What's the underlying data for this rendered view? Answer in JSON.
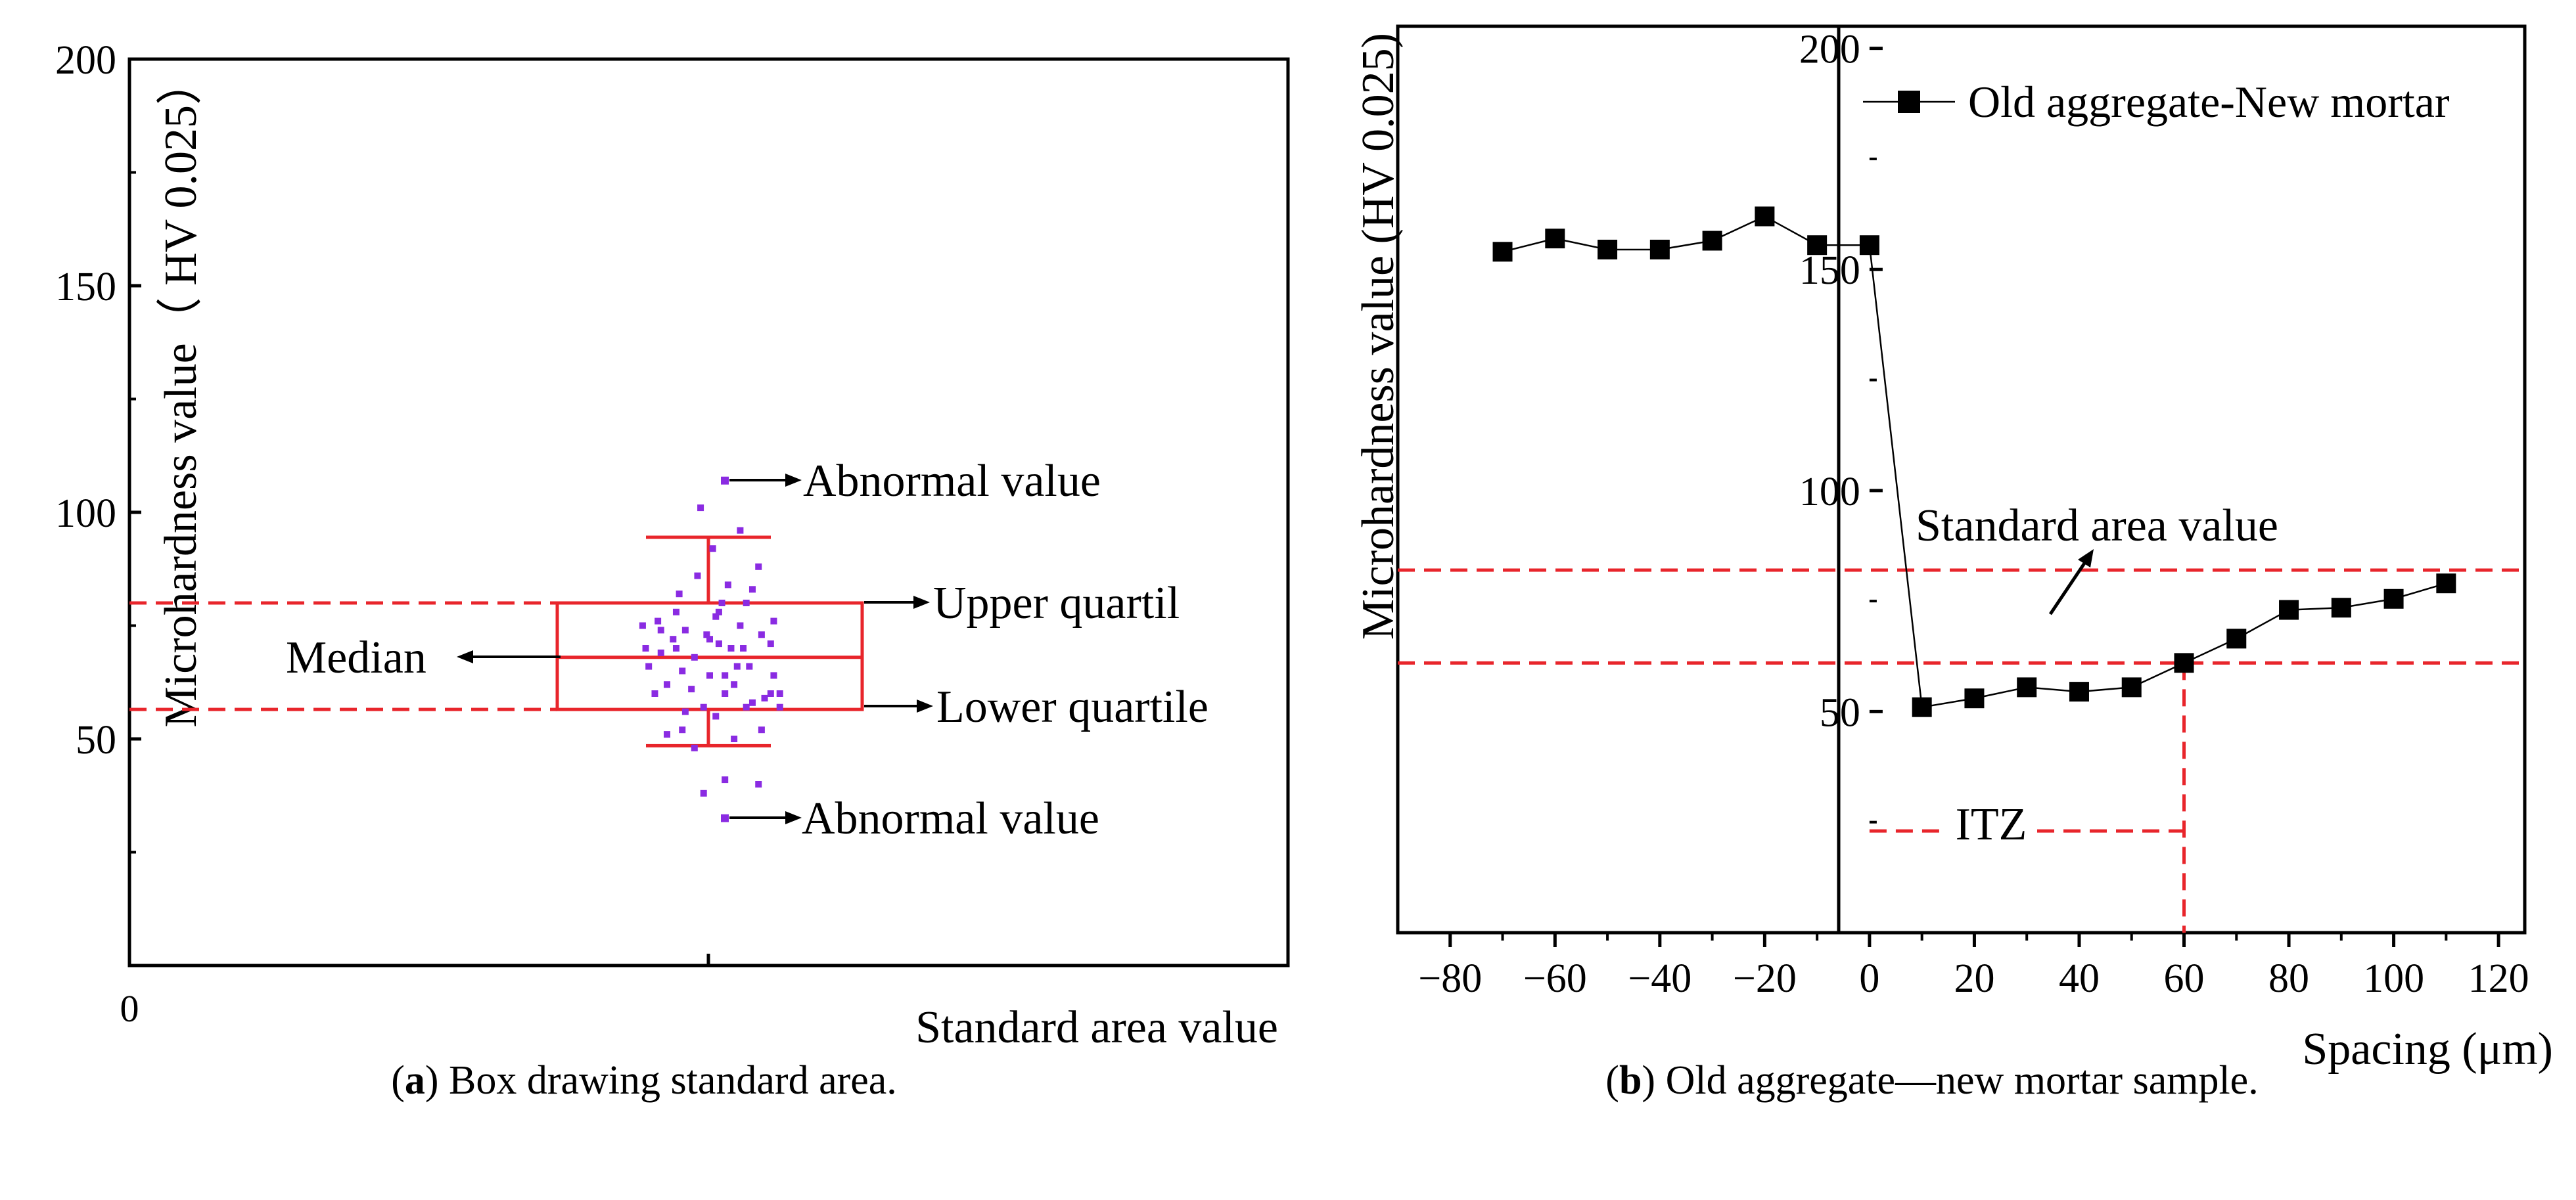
{
  "colors": {
    "axis": "#000000",
    "box": "#e8252b",
    "dashed": "#e8252b",
    "points_a": "#8a2be2",
    "series_b": "#000000"
  },
  "captions": {
    "a_letter": "a",
    "a_text": " Box drawing standard area.",
    "b_letter": "b",
    "b_text": " Old aggregate—new mortar sample."
  },
  "chart_data": [
    {
      "type": "box",
      "title": "",
      "xlabel": "Standard area value",
      "ylabel": "Microhardness value（ HV 0.025）",
      "ylim": [
        0,
        200
      ],
      "y_ticks": [
        50,
        100,
        150,
        200
      ],
      "y_tick_labels": [
        "50",
        "100",
        "150",
        "200"
      ],
      "origin_label": "0",
      "box": {
        "median": 68,
        "q1": 56.5,
        "q3": 80,
        "whisker_low": 48.5,
        "whisker_high": 94.5
      },
      "outliers": [
        107,
        32.5
      ],
      "reference_lines": [
        80,
        56.5
      ],
      "annotations": {
        "abnormal_high": "Abnormal value",
        "upper": "Upper quartil",
        "median": "Median",
        "lower": "Lower quartile",
        "abnormal_low": "Abnormal value"
      },
      "points": [
        [
          0.28,
          75
        ],
        [
          0.33,
          76
        ],
        [
          0.39,
          70
        ],
        [
          0.45,
          68
        ],
        [
          0.5,
          72
        ],
        [
          0.55,
          64
        ],
        [
          0.61,
          70
        ],
        [
          0.67,
          73
        ],
        [
          0.73,
          60
        ],
        [
          0.36,
          62
        ],
        [
          0.42,
          74
        ],
        [
          0.48,
          57
        ],
        [
          0.53,
          78
        ],
        [
          0.59,
          66
        ],
        [
          0.64,
          58
        ],
        [
          0.7,
          71
        ],
        [
          0.3,
          66
        ],
        [
          0.62,
          80
        ],
        [
          0.46,
          86
        ],
        [
          0.56,
          84
        ],
        [
          0.66,
          88
        ],
        [
          0.4,
          82
        ],
        [
          0.51,
          92
        ],
        [
          0.6,
          96
        ],
        [
          0.47,
          101
        ],
        [
          0.64,
          83
        ],
        [
          0.32,
          60
        ],
        [
          0.57,
          70
        ],
        [
          0.44,
          61
        ],
        [
          0.71,
          64
        ],
        [
          0.38,
          72
        ],
        [
          0.52,
          77
        ],
        [
          0.58,
          62
        ],
        [
          0.68,
          59
        ],
        [
          0.34,
          69
        ],
        [
          0.54,
          80
        ],
        [
          0.41,
          65
        ],
        [
          0.63,
          66
        ],
        [
          0.49,
          73
        ],
        [
          0.36,
          51
        ],
        [
          0.45,
          48
        ],
        [
          0.7,
          60
        ],
        [
          0.52,
          55
        ],
        [
          0.55,
          41
        ],
        [
          0.58,
          50
        ],
        [
          0.67,
          52
        ],
        [
          0.41,
          52
        ],
        [
          0.66,
          40
        ],
        [
          0.34,
          74
        ],
        [
          0.6,
          75
        ],
        [
          0.5,
          64
        ],
        [
          0.73,
          57
        ],
        [
          0.29,
          70
        ],
        [
          0.55,
          60
        ],
        [
          0.42,
          56
        ],
        [
          0.62,
          57
        ],
        [
          0.39,
          78
        ],
        [
          0.71,
          76
        ],
        [
          0.48,
          38
        ],
        [
          0.53,
          71
        ]
      ]
    },
    {
      "type": "line",
      "title": "",
      "xlabel": "Spacing (μm)",
      "ylabel": "Microhardness value (HV 0.025)",
      "xlim": [
        -90,
        125
      ],
      "ylim": [
        0,
        205
      ],
      "x_ticks": [
        -80,
        -60,
        -40,
        -20,
        0,
        20,
        40,
        60,
        80,
        100,
        120
      ],
      "x_tick_labels": [
        "−80",
        "−60",
        "−40",
        "−20",
        "0",
        "20",
        "40",
        "60",
        "80",
        "100",
        "120"
      ],
      "y_ticks": [
        50,
        100,
        150,
        200
      ],
      "y_tick_labels": [
        "50",
        "100",
        "150",
        "200"
      ],
      "legend": {
        "position": "top-right",
        "label": "Old aggregate-New mortar"
      },
      "series": [
        {
          "name": "Old aggregate-New mortar",
          "x": [
            -70,
            -60,
            -50,
            -40,
            -30,
            -20,
            -10,
            0,
            10,
            20,
            30,
            40,
            50,
            60,
            70,
            80,
            90,
            100,
            110
          ],
          "y": [
            154,
            157,
            154.5,
            154.5,
            156.5,
            162,
            155.5,
            155.5,
            51,
            53,
            55.5,
            54.5,
            55.5,
            61,
            66.5,
            73,
            73.5,
            75.5,
            79
          ]
        }
      ],
      "reference_lines": [
        82,
        61
      ],
      "itz": {
        "x": 60,
        "y": 23,
        "label": "ITZ"
      },
      "annotation": "Standard area value"
    }
  ]
}
